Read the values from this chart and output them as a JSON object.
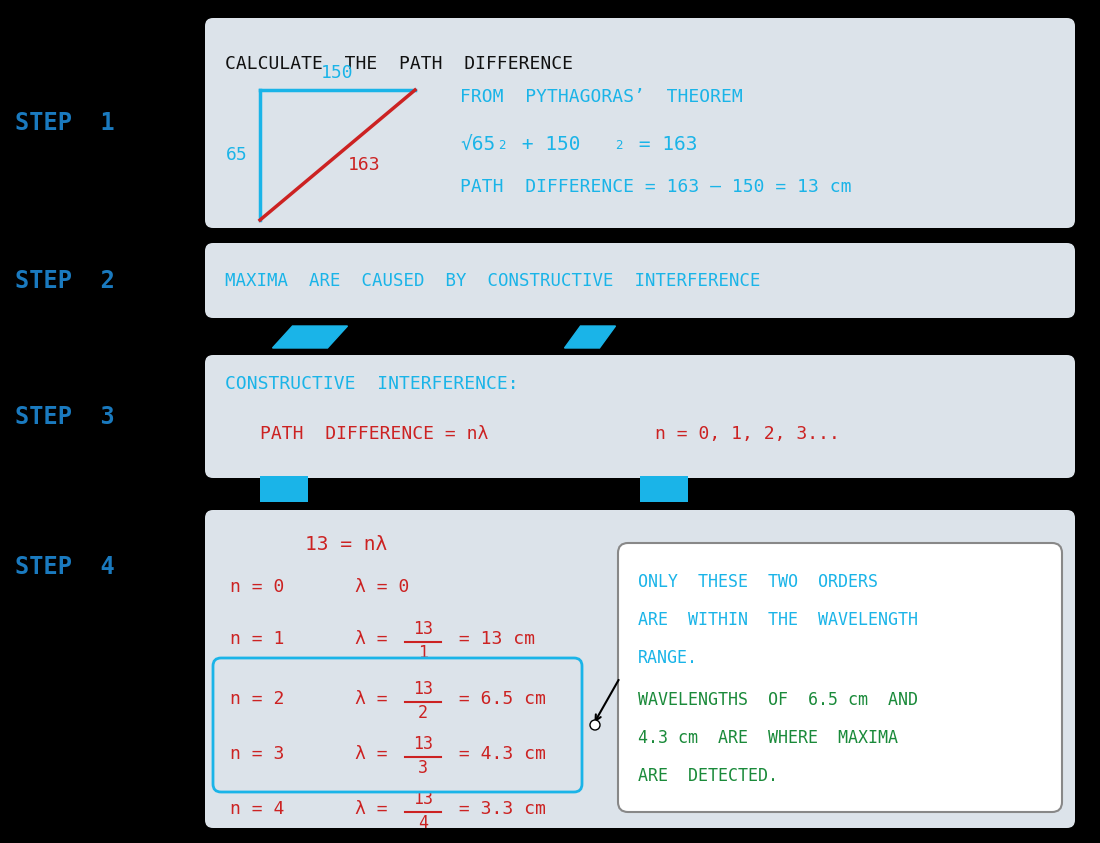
{
  "bg_color": "#000000",
  "panel_color": "#dce3ea",
  "step_color": "#1a7abf",
  "cyan_color": "#1ab4e8",
  "red_color": "#cc2222",
  "green_color": "#1a8a3a",
  "black_color": "#111111",
  "white_color": "#ffffff",
  "gray_border": "#aaaaaa",
  "steps": [
    "STEP  1",
    "STEP  2",
    "STEP  3",
    "STEP  4"
  ]
}
